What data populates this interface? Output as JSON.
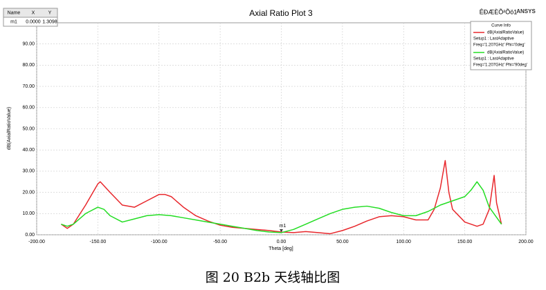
{
  "chart_data": {
    "type": "line",
    "title": "Axial Ratio Plot 3",
    "corner_text": "ÊÐÆÈÕ²Õö1",
    "brand": "ANSYS",
    "xlabel": "Theta [deg]",
    "ylabel": "dB(AxialRatioValue)",
    "xlim": [
      -200,
      200
    ],
    "ylim": [
      0,
      100
    ],
    "xticks": [
      {
        "value": -200,
        "label": "-200.00"
      },
      {
        "value": -150,
        "label": "-150.00"
      },
      {
        "value": -100,
        "label": "-100.00"
      },
      {
        "value": -50,
        "label": "-50.00"
      },
      {
        "value": 0,
        "label": "0.00"
      },
      {
        "value": 50,
        "label": "50.00"
      },
      {
        "value": 100,
        "label": "100.00"
      },
      {
        "value": 150,
        "label": "150.00"
      },
      {
        "value": 200,
        "label": "200.00"
      }
    ],
    "yticks": [
      {
        "value": 0,
        "label": "0.00"
      },
      {
        "value": 10,
        "label": "10.00"
      },
      {
        "value": 20,
        "label": "20.00"
      },
      {
        "value": 30,
        "label": "30.00"
      },
      {
        "value": 40,
        "label": "40.00"
      },
      {
        "value": 50,
        "label": "50.00"
      },
      {
        "value": 60,
        "label": "60.00"
      },
      {
        "value": 70,
        "label": "70.00"
      },
      {
        "value": 80,
        "label": "80.00"
      },
      {
        "value": 90,
        "label": "90.00"
      }
    ],
    "grid": true,
    "legend_title": "Curve Info",
    "series": [
      {
        "name": "dB(AxialRatioValue)",
        "setup": "Setup1 : LastAdaptive",
        "params": "Freq='1.207GHz' Phi='0deg'",
        "color": "#e8262b",
        "x": [
          -180,
          -175,
          -170,
          -160,
          -150,
          -148,
          -140,
          -130,
          -120,
          -110,
          -100,
          -95,
          -90,
          -80,
          -70,
          -60,
          -50,
          -40,
          -30,
          -20,
          -10,
          0,
          10,
          20,
          30,
          40,
          50,
          60,
          70,
          80,
          90,
          100,
          110,
          120,
          125,
          130,
          134,
          137,
          140,
          150,
          160,
          165,
          170,
          174,
          176,
          180
        ],
        "values": [
          5,
          3,
          5,
          14,
          24,
          25,
          20,
          14,
          13,
          16,
          19,
          19,
          18,
          13,
          9,
          6.5,
          4.5,
          3.5,
          3,
          2.5,
          2,
          1.3,
          1,
          1.5,
          1,
          0.5,
          2,
          4,
          6.5,
          8.5,
          9,
          8.5,
          7,
          7,
          12,
          22,
          35,
          20,
          12,
          6,
          4,
          5,
          12,
          28,
          15,
          5
        ]
      },
      {
        "name": "dB(AxialRatioValue)",
        "setup": "Setup1 : LastAdaptive",
        "params": "Freq='1.207GHz' Phi='90deg'",
        "color": "#22dd22",
        "x": [
          -180,
          -175,
          -170,
          -160,
          -150,
          -145,
          -140,
          -130,
          -120,
          -110,
          -100,
          -90,
          -80,
          -70,
          -60,
          -50,
          -40,
          -30,
          -20,
          -10,
          0,
          10,
          20,
          30,
          40,
          50,
          60,
          70,
          80,
          90,
          100,
          110,
          120,
          130,
          140,
          150,
          155,
          160,
          165,
          170,
          175,
          180
        ],
        "values": [
          5,
          4,
          5,
          10,
          13,
          12,
          9,
          6,
          7.5,
          9,
          9.5,
          9,
          8,
          7,
          6,
          5,
          4,
          3,
          2,
          1.3,
          1,
          2.5,
          5,
          7.5,
          10,
          12,
          13,
          13.5,
          12.5,
          10.5,
          9,
          9,
          11,
          14,
          16,
          18,
          21,
          25,
          21,
          13,
          9,
          5
        ]
      }
    ],
    "marker_table": {
      "headers": [
        "Name",
        "X",
        "Y"
      ],
      "rows": [
        {
          "name": "m1",
          "x": {
            "value": 0,
            "label": "0.0000"
          },
          "y": {
            "value": 1.3098,
            "label": "1.3098"
          }
        }
      ]
    }
  },
  "caption": "图 20 B2b 天线轴比图"
}
